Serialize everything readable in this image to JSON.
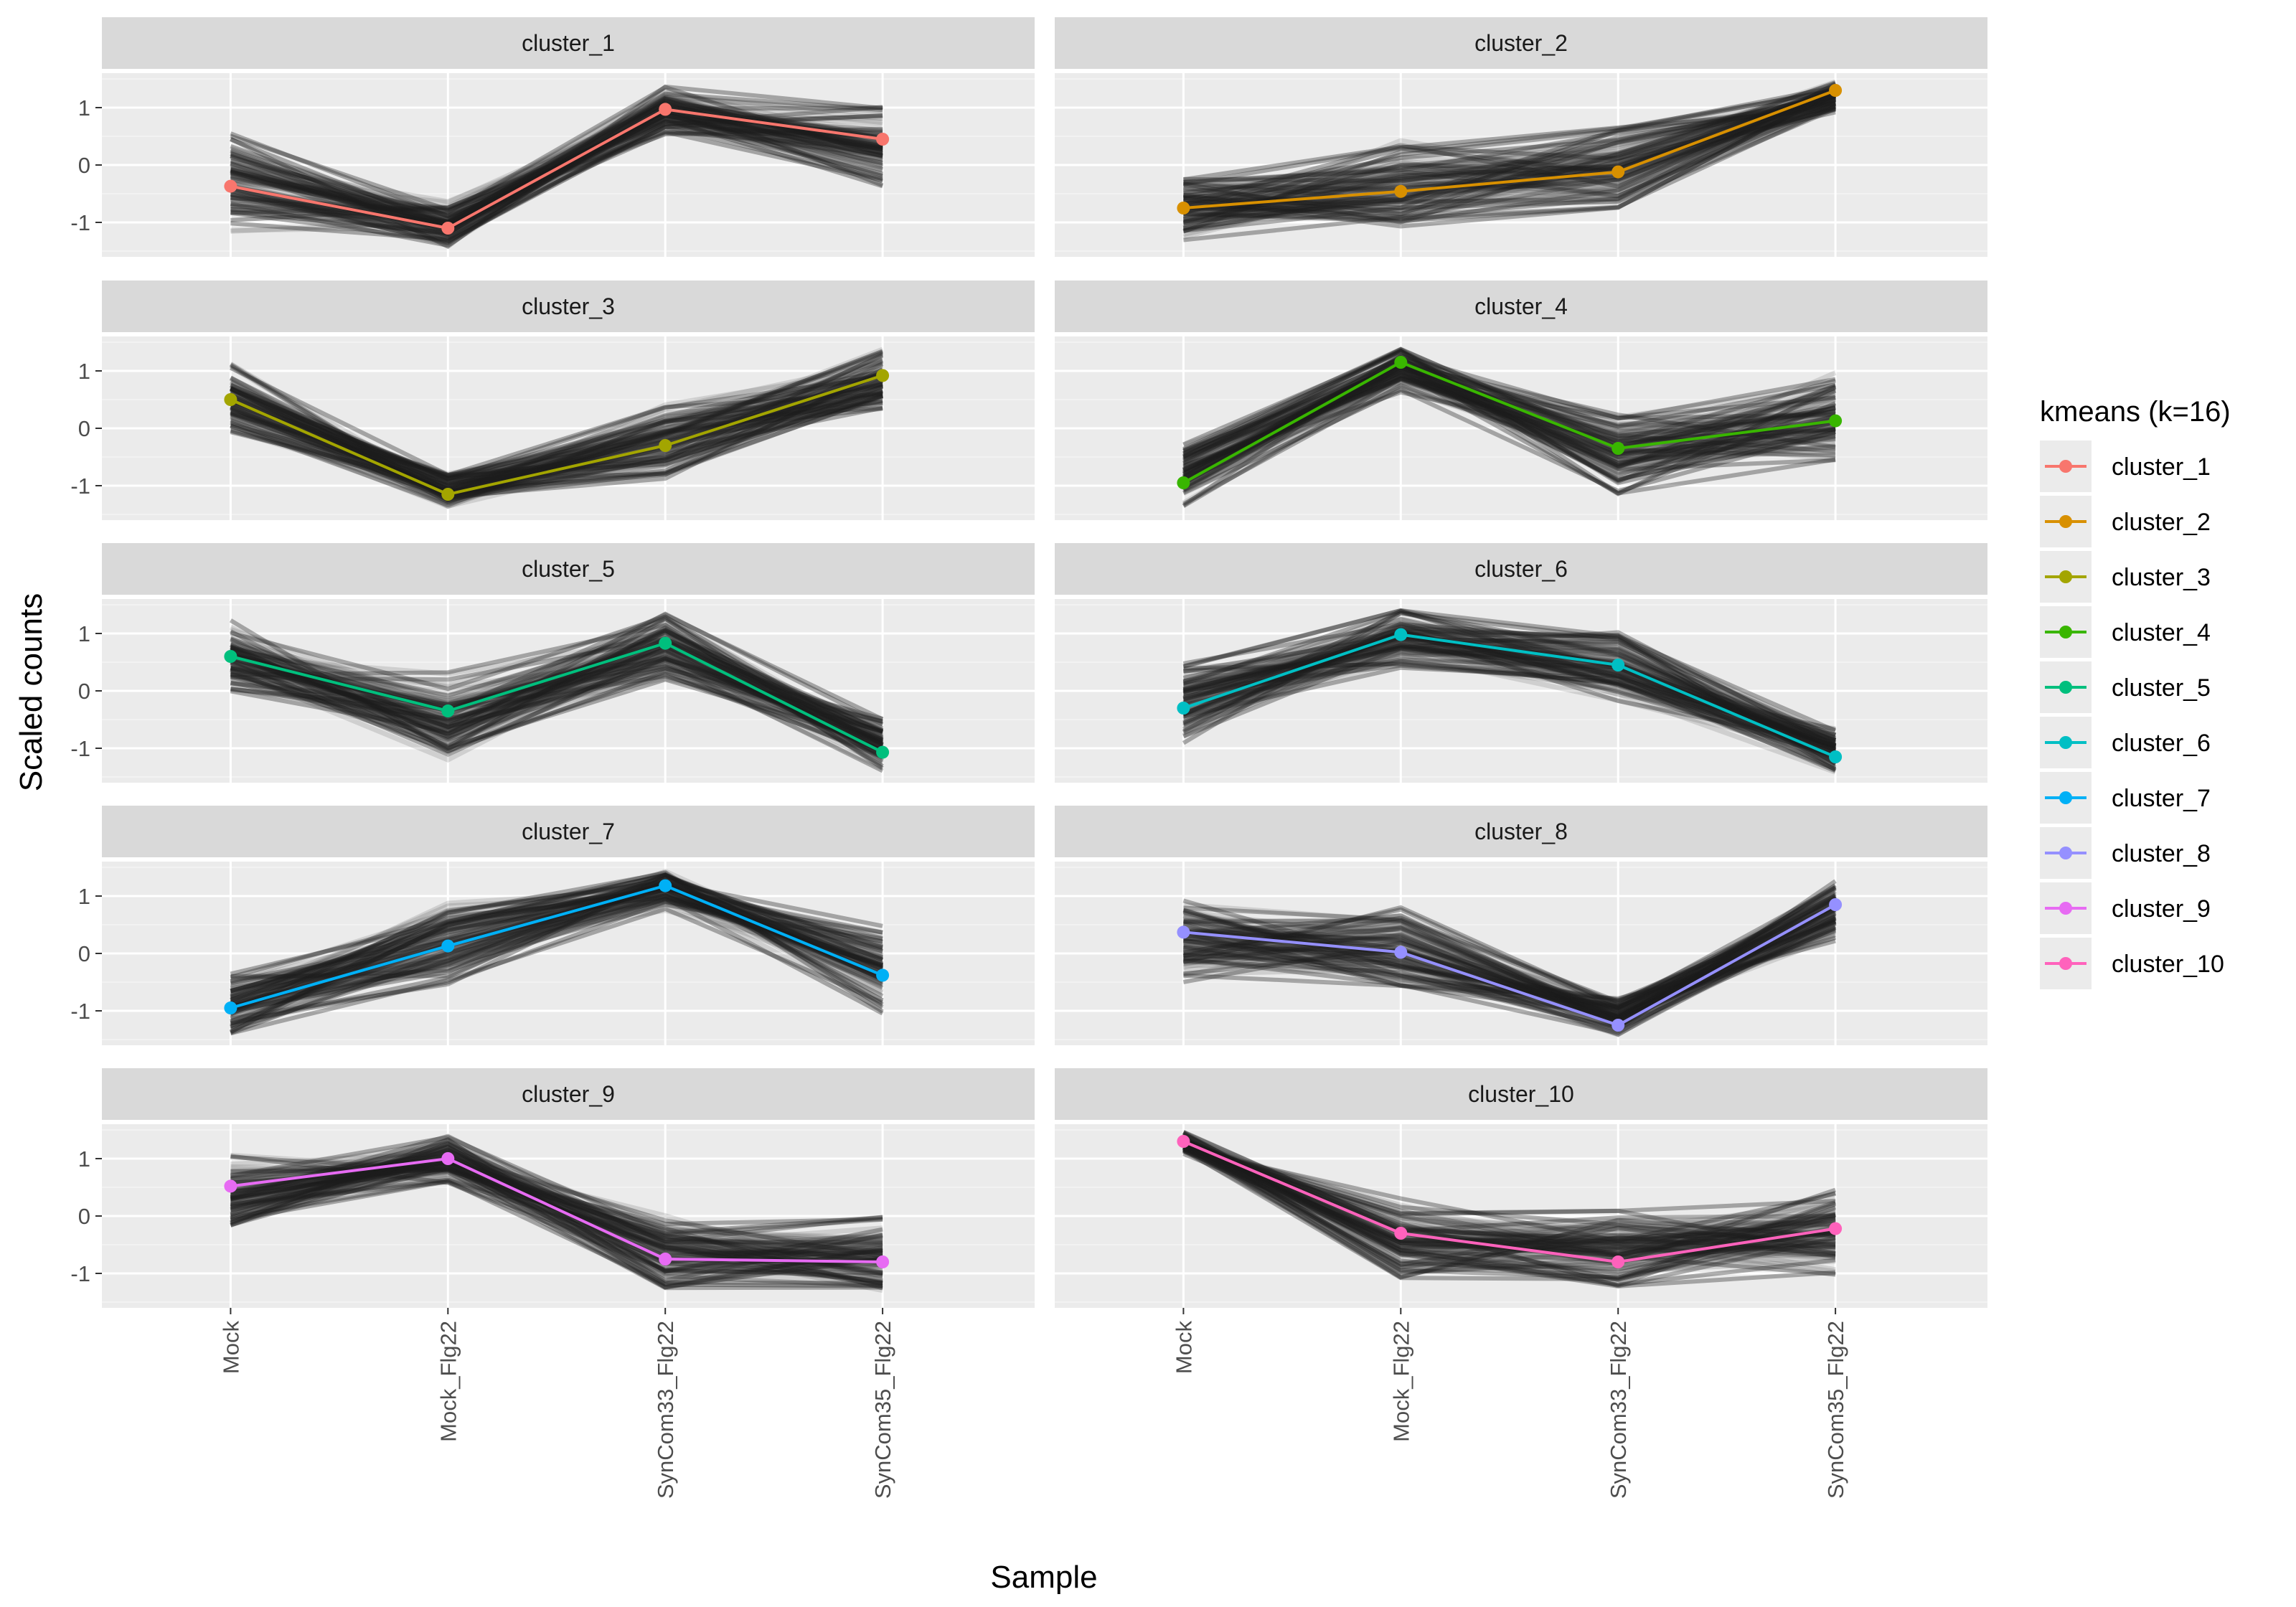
{
  "chart_data": {
    "type": "line",
    "facet_layout": "5 rows x 2 columns",
    "xlabel": "Sample",
    "ylabel": "Scaled counts",
    "categories": [
      "Mock",
      "Mock_Flg22",
      "SynCom33_Flg22",
      "SynCom35_Flg22"
    ],
    "y_ticks": [
      1,
      0,
      -1
    ],
    "y_tick_labels": [
      "1",
      "0",
      "-1"
    ],
    "ylim": [
      -1.6,
      1.6
    ],
    "grid": true,
    "legend": {
      "title": "kmeans (k=16)",
      "placement": "right",
      "entries": [
        "cluster_1",
        "cluster_2",
        "cluster_3",
        "cluster_4",
        "cluster_5",
        "cluster_6",
        "cluster_7",
        "cluster_8",
        "cluster_9",
        "cluster_10"
      ]
    },
    "panels": [
      {
        "title": "cluster_1",
        "color": "#F8766D",
        "values": [
          -0.37,
          -1.1,
          0.97,
          0.45
        ],
        "band_upper": [
          0.7,
          -0.55,
          1.45,
          1.15
        ],
        "band_lower": [
          -1.25,
          -1.5,
          0.45,
          -0.5
        ]
      },
      {
        "title": "cluster_2",
        "color": "#D89000",
        "values": [
          -0.75,
          -0.46,
          -0.12,
          1.3
        ],
        "band_upper": [
          -0.05,
          0.5,
          0.8,
          1.5
        ],
        "band_lower": [
          -1.5,
          -1.2,
          -0.95,
          0.85
        ]
      },
      {
        "title": "cluster_3",
        "color": "#A3A500",
        "values": [
          0.5,
          -1.15,
          -0.3,
          0.92
        ],
        "band_upper": [
          1.25,
          -0.7,
          0.55,
          1.45
        ],
        "band_lower": [
          -0.25,
          -1.5,
          -1.0,
          0.2
        ]
      },
      {
        "title": "cluster_4",
        "color": "#39B600",
        "values": [
          -0.95,
          1.15,
          -0.35,
          0.13
        ],
        "band_upper": [
          -0.15,
          1.5,
          0.4,
          1.05
        ],
        "band_lower": [
          -1.5,
          0.55,
          -1.3,
          -0.7
        ]
      },
      {
        "title": "cluster_5",
        "color": "#00BF7D",
        "values": [
          0.6,
          -0.35,
          0.83,
          -1.07
        ],
        "band_upper": [
          1.35,
          0.5,
          1.45,
          -0.35
        ],
        "band_lower": [
          -0.25,
          -1.3,
          0.05,
          -1.5
        ]
      },
      {
        "title": "cluster_6",
        "color": "#00BFC4",
        "values": [
          -0.3,
          0.98,
          0.45,
          -1.15
        ],
        "band_upper": [
          0.7,
          1.5,
          1.15,
          -0.55
        ],
        "band_lower": [
          -1.05,
          0.3,
          -0.3,
          -1.5
        ]
      },
      {
        "title": "cluster_7",
        "color": "#00B0F6",
        "values": [
          -0.95,
          0.13,
          1.18,
          -0.38
        ],
        "band_upper": [
          -0.25,
          1.0,
          1.5,
          0.65
        ],
        "band_lower": [
          -1.5,
          -0.7,
          0.7,
          -1.2
        ]
      },
      {
        "title": "cluster_8",
        "color": "#9590FF",
        "values": [
          0.37,
          0.02,
          -1.25,
          0.85
        ],
        "band_upper": [
          1.05,
          0.95,
          -0.7,
          1.4
        ],
        "band_lower": [
          -0.65,
          -0.75,
          -1.5,
          0.1
        ]
      },
      {
        "title": "cluster_9",
        "color": "#E76BF3",
        "values": [
          0.52,
          1.0,
          -0.75,
          -0.8
        ],
        "band_upper": [
          1.2,
          1.5,
          0.05,
          0.1
        ],
        "band_lower": [
          -0.3,
          0.5,
          -1.4,
          -1.4
        ]
      },
      {
        "title": "cluster_10",
        "color": "#FF62BC",
        "values": [
          1.3,
          -0.3,
          -0.8,
          -0.22
        ],
        "band_upper": [
          1.5,
          0.5,
          0.25,
          0.6
        ],
        "band_lower": [
          1.05,
          -1.25,
          -1.4,
          -1.25
        ]
      }
    ]
  }
}
